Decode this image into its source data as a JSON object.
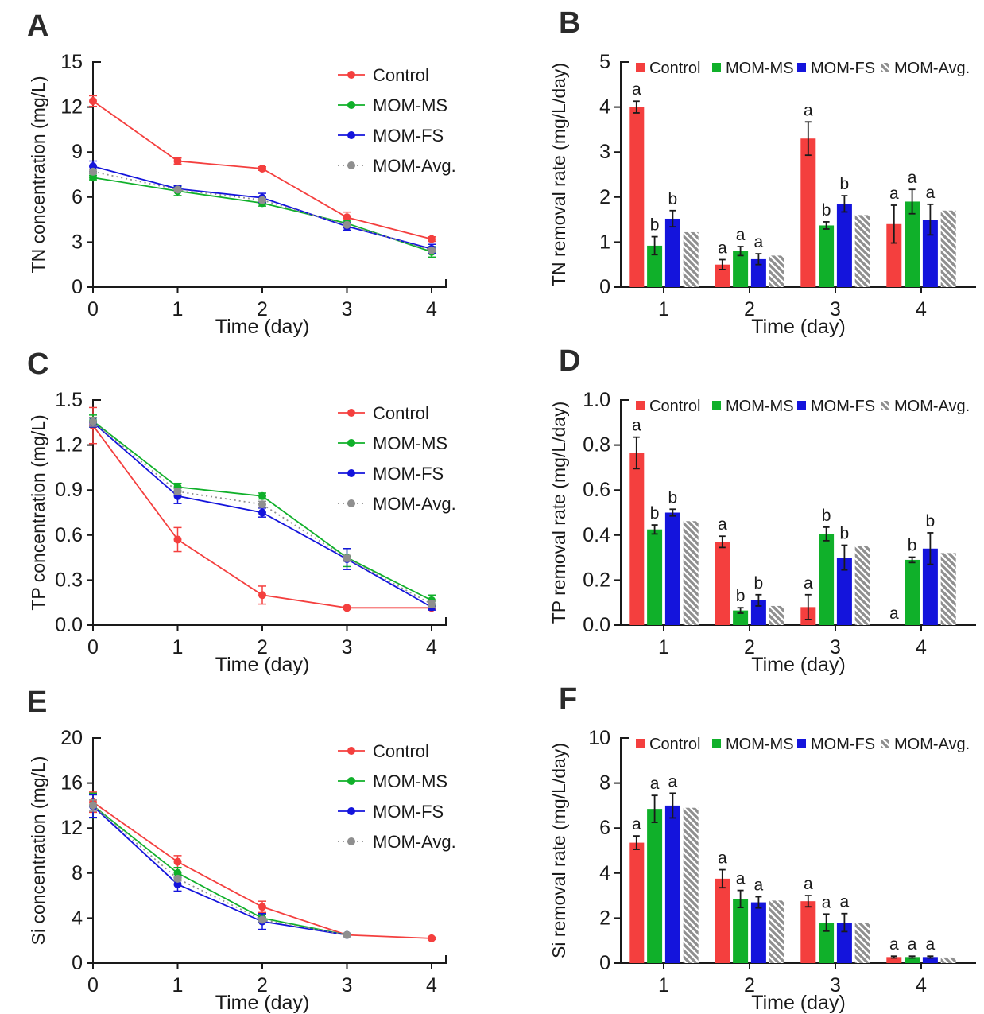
{
  "figure": {
    "description": "Six-panel nutrient figure: concentration line charts (left) and removal-rate bar charts (right)",
    "text_color": "#1a1a1a",
    "hatch_color": "#8f8f8f"
  },
  "chart_data": [
    {
      "panel_label": "A",
      "type": "line",
      "xlabel": "Time (day)",
      "ylabel": "TN concentration (mg/L)",
      "x": [
        0,
        1,
        2,
        3,
        4
      ],
      "xtick_labels": [
        "0",
        "1",
        "2",
        "3",
        "4"
      ],
      "ylim": [
        0,
        15
      ],
      "yticks": [
        0,
        3,
        6,
        9,
        12,
        15
      ],
      "ytick_labels": [
        "0",
        "3",
        "6",
        "9",
        "12",
        "15"
      ],
      "grid": false,
      "legend_position": "inside-top-right",
      "series": [
        {
          "name": "Control",
          "color": "#f43f3e",
          "style": "solid",
          "values": [
            12.4,
            8.4,
            7.9,
            4.65,
            3.2
          ],
          "errors": [
            0.35,
            0.2,
            0.12,
            0.35,
            0.15
          ]
        },
        {
          "name": "MOM-MS",
          "color": "#10b02a",
          "style": "solid",
          "values": [
            7.3,
            6.4,
            5.6,
            4.25,
            2.35
          ],
          "errors": [
            0.15,
            0.3,
            0.2,
            0.2,
            0.35
          ]
        },
        {
          "name": "MOM-FS",
          "color": "#1414dc",
          "style": "solid",
          "values": [
            8.05,
            6.55,
            5.95,
            4.05,
            2.55
          ],
          "errors": [
            0.35,
            0.2,
            0.3,
            0.25,
            0.3
          ]
        },
        {
          "name": "MOM-Avg.",
          "color": "#8f8f8f",
          "style": "dotted",
          "values": [
            7.7,
            6.5,
            5.8,
            4.15,
            2.45
          ],
          "errors": [
            0.15,
            0.1,
            0.1,
            0.1,
            0.1
          ]
        }
      ]
    },
    {
      "panel_label": "B",
      "type": "bar",
      "xlabel": "Time (day)",
      "ylabel": "TN removal rate (mg/L/day)",
      "categories": [
        1,
        2,
        3,
        4
      ],
      "xtick_labels": [
        "1",
        "2",
        "3",
        "4"
      ],
      "ylim": [
        0,
        5
      ],
      "yticks": [
        0,
        1,
        2,
        3,
        4,
        5
      ],
      "ytick_labels": [
        "0",
        "1",
        "2",
        "3",
        "4",
        "5"
      ],
      "grid": false,
      "legend_position": "top",
      "series": [
        {
          "name": "Control",
          "color": "#f43f3e",
          "hatch": false,
          "values": [
            4.0,
            0.5,
            3.3,
            1.4
          ],
          "errors": [
            0.13,
            0.11,
            0.37,
            0.42
          ],
          "letters": [
            "a",
            "a",
            "a",
            "a"
          ]
        },
        {
          "name": "MOM-MS",
          "color": "#10b02a",
          "hatch": false,
          "values": [
            0.92,
            0.8,
            1.37,
            1.9
          ],
          "errors": [
            0.2,
            0.1,
            0.08,
            0.27
          ],
          "letters": [
            "b",
            "a",
            "b",
            "a"
          ]
        },
        {
          "name": "MOM-FS",
          "color": "#1414dc",
          "hatch": false,
          "values": [
            1.52,
            0.62,
            1.85,
            1.5
          ],
          "errors": [
            0.18,
            0.12,
            0.18,
            0.34
          ],
          "letters": [
            "b",
            "a",
            "b",
            "a"
          ]
        },
        {
          "name": "MOM-Avg.",
          "color": "#8f8f8f",
          "hatch": true,
          "values": [
            1.22,
            0.7,
            1.6,
            1.7
          ],
          "errors": [
            0,
            0,
            0,
            0
          ],
          "letters": [
            "",
            "",
            "",
            ""
          ]
        }
      ]
    },
    {
      "panel_label": "C",
      "type": "line",
      "xlabel": "Time (day)",
      "ylabel": "TP concentration (mg/L)",
      "x": [
        0,
        1,
        2,
        3,
        4
      ],
      "xtick_labels": [
        "0",
        "1",
        "2",
        "3",
        "4"
      ],
      "ylim": [
        0,
        1.5
      ],
      "yticks": [
        0,
        0.3,
        0.6,
        0.9,
        1.2,
        1.5
      ],
      "ytick_labels": [
        "0.0",
        "0.3",
        "0.6",
        "0.9",
        "1.2",
        "1.5"
      ],
      "grid": false,
      "legend_position": "inside-top-right",
      "series": [
        {
          "name": "Control",
          "color": "#f43f3e",
          "style": "solid",
          "values": [
            1.33,
            0.57,
            0.2,
            0.115,
            0.115
          ],
          "errors": [
            0.12,
            0.08,
            0.06,
            0.01,
            0.01
          ]
        },
        {
          "name": "MOM-MS",
          "color": "#10b02a",
          "style": "solid",
          "values": [
            1.36,
            0.92,
            0.86,
            0.45,
            0.165
          ],
          "errors": [
            0.04,
            0.025,
            0.02,
            0.06,
            0.035
          ]
        },
        {
          "name": "MOM-FS",
          "color": "#1414dc",
          "style": "solid",
          "values": [
            1.35,
            0.86,
            0.75,
            0.44,
            0.12
          ],
          "errors": [
            0.03,
            0.05,
            0.03,
            0.07,
            0.02
          ]
        },
        {
          "name": "MOM-Avg.",
          "color": "#8f8f8f",
          "style": "dotted",
          "values": [
            1.355,
            0.89,
            0.805,
            0.445,
            0.14
          ],
          "errors": [
            0.03,
            0.02,
            0.02,
            0.02,
            0.02
          ]
        }
      ]
    },
    {
      "panel_label": "D",
      "type": "bar",
      "xlabel": "Time (day)",
      "ylabel": "TP removal rate (mg/L/day)",
      "categories": [
        1,
        2,
        3,
        4
      ],
      "xtick_labels": [
        "1",
        "2",
        "3",
        "4"
      ],
      "ylim": [
        0,
        1.0
      ],
      "yticks": [
        0,
        0.2,
        0.4,
        0.6,
        0.8,
        1.0
      ],
      "ytick_labels": [
        "0.0",
        "0.2",
        "0.4",
        "0.6",
        "0.8",
        "1.0"
      ],
      "grid": false,
      "legend_position": "top",
      "series": [
        {
          "name": "Control",
          "color": "#f43f3e",
          "hatch": false,
          "values": [
            0.765,
            0.37,
            0.08,
            0
          ],
          "errors": [
            0.07,
            0.025,
            0.055,
            0
          ],
          "letters": [
            "a",
            "a",
            "a",
            "a"
          ]
        },
        {
          "name": "MOM-MS",
          "color": "#10b02a",
          "hatch": false,
          "values": [
            0.425,
            0.065,
            0.405,
            0.29
          ],
          "errors": [
            0.02,
            0.012,
            0.03,
            0.012
          ],
          "letters": [
            "b",
            "b",
            "b",
            "b"
          ]
        },
        {
          "name": "MOM-FS",
          "color": "#1414dc",
          "hatch": false,
          "values": [
            0.5,
            0.11,
            0.3,
            0.34
          ],
          "errors": [
            0.015,
            0.025,
            0.055,
            0.07
          ],
          "letters": [
            "b",
            "b",
            "b",
            "b"
          ]
        },
        {
          "name": "MOM-Avg.",
          "color": "#8f8f8f",
          "hatch": true,
          "values": [
            0.462,
            0.085,
            0.35,
            0.32
          ],
          "errors": [
            0,
            0,
            0,
            0
          ],
          "letters": [
            "",
            "",
            "",
            ""
          ]
        }
      ]
    },
    {
      "panel_label": "E",
      "type": "line",
      "xlabel": "Time (day)",
      "ylabel": "Si concentration (mg/L)",
      "x": [
        0,
        1,
        2,
        3,
        4
      ],
      "xtick_labels": [
        "0",
        "1",
        "2",
        "3",
        "4"
      ],
      "ylim": [
        0,
        20
      ],
      "yticks": [
        0,
        4,
        8,
        12,
        16,
        20
      ],
      "ytick_labels": [
        "0",
        "4",
        "8",
        "12",
        "16",
        "20"
      ],
      "grid": false,
      "legend_position": "inside-top-right",
      "series": [
        {
          "name": "Control",
          "color": "#f43f3e",
          "style": "solid",
          "values": [
            14.3,
            9.0,
            5.0,
            2.5,
            2.2
          ],
          "errors": [
            0.9,
            0.55,
            0.5,
            0.12,
            0.1
          ]
        },
        {
          "name": "MOM-MS",
          "color": "#10b02a",
          "style": "solid",
          "values": [
            14.0,
            8.0,
            4.0,
            2.5,
            null
          ],
          "errors": [
            1.1,
            0.5,
            0.35,
            0.1,
            0
          ]
        },
        {
          "name": "MOM-FS",
          "color": "#1414dc",
          "style": "solid",
          "values": [
            13.95,
            7.0,
            3.7,
            2.5,
            null
          ],
          "errors": [
            1.0,
            0.6,
            0.7,
            0.1,
            0
          ]
        },
        {
          "name": "MOM-Avg.",
          "color": "#8f8f8f",
          "style": "dotted",
          "values": [
            14.0,
            7.5,
            3.85,
            2.5,
            null
          ],
          "errors": [
            0.5,
            0.2,
            0.15,
            0.05,
            0
          ]
        }
      ]
    },
    {
      "panel_label": "F",
      "type": "bar",
      "xlabel": "Time (day)",
      "ylabel": "Si removal rate (mg/L/day)",
      "categories": [
        1,
        2,
        3,
        4
      ],
      "xtick_labels": [
        "1",
        "2",
        "3",
        "4"
      ],
      "ylim": [
        0,
        10
      ],
      "yticks": [
        0,
        2,
        4,
        6,
        8,
        10
      ],
      "ytick_labels": [
        "0",
        "2",
        "4",
        "6",
        "8",
        "10"
      ],
      "grid": false,
      "legend_position": "top",
      "series": [
        {
          "name": "Control",
          "color": "#f43f3e",
          "hatch": false,
          "values": [
            5.35,
            3.75,
            2.75,
            0.27
          ],
          "errors": [
            0.3,
            0.4,
            0.25,
            0.04
          ],
          "letters": [
            "a",
            "a",
            "a",
            "a"
          ]
        },
        {
          "name": "MOM-MS",
          "color": "#10b02a",
          "hatch": false,
          "values": [
            6.85,
            2.85,
            1.8,
            0.27
          ],
          "errors": [
            0.6,
            0.38,
            0.38,
            0.04
          ],
          "letters": [
            "a",
            "a",
            "a",
            "a"
          ]
        },
        {
          "name": "MOM-FS",
          "color": "#1414dc",
          "hatch": false,
          "values": [
            7.0,
            2.7,
            1.8,
            0.27
          ],
          "errors": [
            0.55,
            0.25,
            0.4,
            0.04
          ],
          "letters": [
            "a",
            "a",
            "a",
            "a"
          ]
        },
        {
          "name": "MOM-Avg.",
          "color": "#8f8f8f",
          "hatch": true,
          "values": [
            6.9,
            2.78,
            1.78,
            0.25
          ],
          "errors": [
            0,
            0,
            0,
            0
          ],
          "letters": [
            "",
            "",
            "",
            ""
          ]
        }
      ]
    }
  ]
}
